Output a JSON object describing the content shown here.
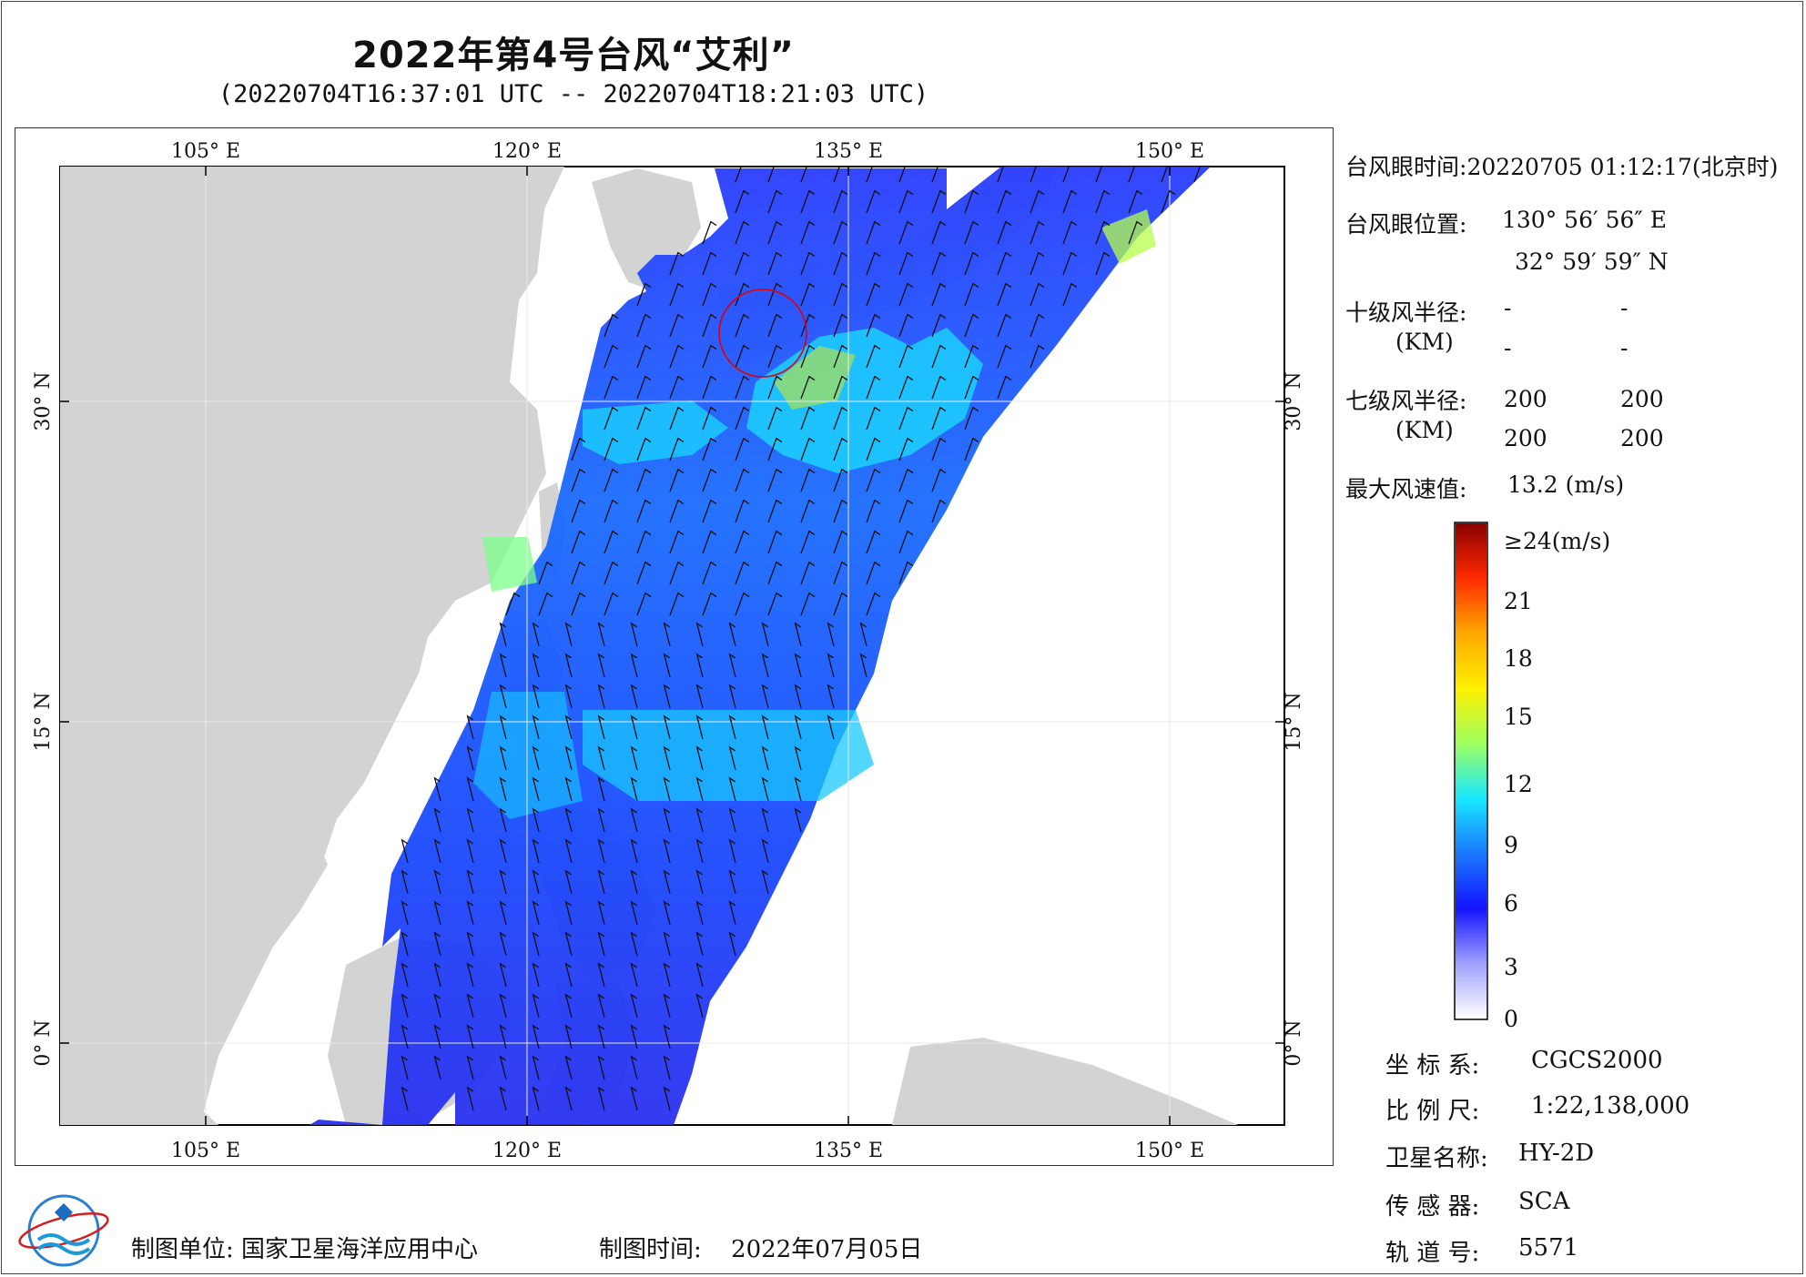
{
  "title": "2022年第4号台风“艾利”",
  "subtitle": "(20220704T16:37:01 UTC -- 20220704T18:21:03 UTC)",
  "axes": {
    "lon_top": [
      "105° E",
      "120° E",
      "135° E",
      "150° E"
    ],
    "lon_bottom": [
      "105° E",
      "120° E",
      "135° E",
      "150° E"
    ],
    "lat_left": [
      "30° N",
      "15° N",
      "0° N"
    ],
    "lat_right": [
      "30° N",
      "15° N",
      "0° N"
    ]
  },
  "info": {
    "eye_time_label": "台风眼时间:",
    "eye_time_value": "20220705 01:12:17(北京时)",
    "eye_pos_label": "台风眼位置:",
    "eye_lon": "130° 56′ 56″ E",
    "eye_lat": "32° 59′ 59″ N",
    "r10_label": "十级风半径:",
    "r10_unit": "(KM)",
    "r10_values": [
      "-",
      "-",
      "-",
      "-"
    ],
    "r7_label": "七级风半径:",
    "r7_unit": "(KM)",
    "r7_values": [
      "200",
      "200",
      "200",
      "200"
    ],
    "max_wind_label": "最大风速值:",
    "max_wind_value": "13.2 (m/s)"
  },
  "colorbar": {
    "labels": [
      "≥24(m/s)",
      "21",
      "18",
      "15",
      "12",
      "9",
      "6",
      "3",
      "0"
    ],
    "colors": [
      "#8b0000",
      "#ff2a00",
      "#ffa800",
      "#fff000",
      "#9fff5f",
      "#18e8ff",
      "#1a78ff",
      "#1414ff",
      "#a0a0ff",
      "#ffffff"
    ]
  },
  "metadata": {
    "coord_label": "坐 标 系:",
    "coord_value": "CGCS2000",
    "scale_label": "比 例 尺:",
    "scale_value": "1:22,138,000",
    "satellite_label": "卫星名称:",
    "satellite_value": "HY-2D",
    "sensor_label": "传 感 器:",
    "sensor_value": "SCA",
    "orbit_label": "轨 道 号:",
    "orbit_value": "5571"
  },
  "footer": {
    "org_label": "制图单位:",
    "org_value": "国家卫星海洋应用中心",
    "date_label": "制图时间:",
    "date_value": "2022年07月05日"
  },
  "colors": {
    "land": "#d3d3d3",
    "sea": "#ffffff",
    "circle": "#e00000"
  }
}
